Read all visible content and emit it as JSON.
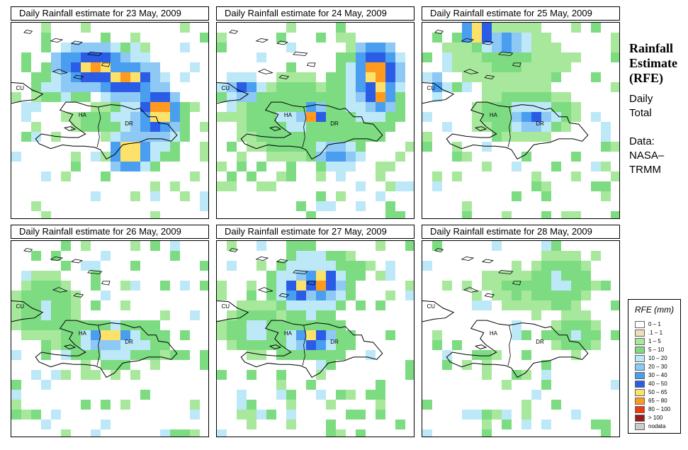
{
  "panels": [
    {
      "title": "Daily Rainfall estimate for  23 May, 2009",
      "labels": {
        "cu": "CU",
        "ha": "HA",
        "dr": "DR"
      },
      "clusters": [
        {
          "lon": -72.0,
          "lat": 21.4,
          "rx": 1.7,
          "ry": 0.9,
          "peak": 8
        },
        {
          "lon": -70.6,
          "lat": 20.9,
          "rx": 1.6,
          "ry": 0.8,
          "peak": 8
        },
        {
          "lon": -69.1,
          "lat": 19.6,
          "rx": 0.9,
          "ry": 1.0,
          "peak": 9
        },
        {
          "lon": -70.4,
          "lat": 17.9,
          "rx": 0.9,
          "ry": 0.7,
          "peak": 9
        },
        {
          "lon": -69.6,
          "lat": 19.1,
          "rx": 1.5,
          "ry": 1.6,
          "peak": 5
        },
        {
          "lon": -73.2,
          "lat": 20.6,
          "rx": 1.3,
          "ry": 0.7,
          "peak": 4
        },
        {
          "lon": -71.0,
          "lat": 19.2,
          "rx": 1.7,
          "ry": 0.6,
          "peak": 3
        }
      ]
    },
    {
      "title": "Daily Rainfall estimate for  24 May, 2009",
      "labels": {
        "cu": "CU",
        "ha": "HA",
        "dr": "DR"
      },
      "clusters": [
        {
          "lon": -68.6,
          "lat": 21.2,
          "rx": 1.0,
          "ry": 1.2,
          "peak": 9
        },
        {
          "lon": -68.5,
          "lat": 20.3,
          "rx": 0.7,
          "ry": 0.7,
          "peak": 9
        },
        {
          "lon": -71.3,
          "lat": 19.4,
          "rx": 0.6,
          "ry": 0.4,
          "peak": 9
        },
        {
          "lon": -74.4,
          "lat": 20.5,
          "rx": 0.9,
          "ry": 0.6,
          "peak": 6
        },
        {
          "lon": -70.3,
          "lat": 17.8,
          "rx": 1.0,
          "ry": 0.6,
          "peak": 6
        },
        {
          "lon": -72.0,
          "lat": 19.3,
          "rx": 2.5,
          "ry": 1.5,
          "peak": 3
        },
        {
          "lon": -69.0,
          "lat": 20.3,
          "rx": 1.6,
          "ry": 1.8,
          "peak": 4
        }
      ]
    },
    {
      "title": "Daily Rainfall estimate for  25 May, 2009",
      "labels": {
        "cu": "CU",
        "ha": "HA",
        "dr": "DR"
      },
      "clusters": [
        {
          "lon": -73.1,
          "lat": 22.8,
          "rx": 0.7,
          "ry": 0.5,
          "peak": 9
        },
        {
          "lon": -72.0,
          "lat": 22.4,
          "rx": 1.1,
          "ry": 0.5,
          "peak": 6
        },
        {
          "lon": -74.8,
          "lat": 20.6,
          "rx": 0.4,
          "ry": 0.5,
          "peak": 6
        },
        {
          "lon": -70.7,
          "lat": 19.3,
          "rx": 1.0,
          "ry": 0.6,
          "peak": 6
        },
        {
          "lon": -71.0,
          "lat": 19.5,
          "rx": 2.0,
          "ry": 1.0,
          "peak": 3
        },
        {
          "lon": -71.8,
          "lat": 21.8,
          "rx": 2.2,
          "ry": 1.2,
          "peak": 2
        }
      ]
    },
    {
      "title": "Daily Rainfall estimate for  26 May, 2009",
      "labels": {
        "cu": "CU",
        "ha": "HA",
        "dr": "DR"
      },
      "clusters": [
        {
          "lon": -71.2,
          "lat": 19.3,
          "rx": 0.9,
          "ry": 0.4,
          "peak": 8
        },
        {
          "lon": -72.0,
          "lat": 19.2,
          "rx": 0.4,
          "ry": 0.5,
          "peak": 6
        },
        {
          "lon": -71.0,
          "lat": 19.1,
          "rx": 2.0,
          "ry": 0.9,
          "peak": 4
        },
        {
          "lon": -74.0,
          "lat": 20.5,
          "rx": 1.4,
          "ry": 1.2,
          "peak": 3
        }
      ]
    },
    {
      "title": "Daily Rainfall estimate for  27 May, 2009",
      "labels": {
        "cu": "CU",
        "ha": "HA",
        "dr": "DR"
      },
      "clusters": [
        {
          "lon": -71.0,
          "lat": 21.5,
          "rx": 0.8,
          "ry": 0.6,
          "peak": 9
        },
        {
          "lon": -72.0,
          "lat": 21.2,
          "rx": 0.6,
          "ry": 0.4,
          "peak": 9
        },
        {
          "lon": -71.4,
          "lat": 21.4,
          "rx": 1.7,
          "ry": 1.4,
          "peak": 5
        },
        {
          "lon": -71.3,
          "lat": 19.2,
          "rx": 0.8,
          "ry": 0.4,
          "peak": 9
        },
        {
          "lon": -71.5,
          "lat": 19.1,
          "rx": 1.8,
          "ry": 0.8,
          "peak": 4
        },
        {
          "lon": -73.8,
          "lat": 19.6,
          "rx": 1.4,
          "ry": 1.0,
          "peak": 3
        }
      ]
    },
    {
      "title": "Daily Rainfall estimate for  28 May, 2009",
      "labels": {
        "cu": "CU",
        "ha": "HA",
        "dr": "DR"
      },
      "clusters": [
        {
          "lon": -69.6,
          "lat": 21.5,
          "rx": 1.4,
          "ry": 1.1,
          "peak": 3
        },
        {
          "lon": -68.9,
          "lat": 19.4,
          "rx": 1.0,
          "ry": 0.8,
          "peak": 3
        },
        {
          "lon": -71.4,
          "lat": 21.3,
          "rx": 1.2,
          "ry": 0.8,
          "peak": 2
        }
      ]
    }
  ],
  "sidebar": {
    "title_lines": [
      "Rainfall",
      "Estimate",
      "(RFE)"
    ],
    "period_lines": [
      "Daily",
      "Total"
    ],
    "source_lines": [
      "Data:",
      "NASA–",
      "TRMM"
    ]
  },
  "legend": {
    "title": "RFE (mm)",
    "classes": [
      {
        "label": "0 – 1",
        "color": "#ffffff"
      },
      {
        "label": ".1 – 1",
        "color": "#f0dcc0"
      },
      {
        "label": "1 – 5",
        "color": "#a8e89c"
      },
      {
        "label": "5 – 10",
        "color": "#7ddc82"
      },
      {
        "label": "10 – 20",
        "color": "#bde8f8"
      },
      {
        "label": "20 – 30",
        "color": "#8ec8f4"
      },
      {
        "label": "30 – 40",
        "color": "#4a9ef0"
      },
      {
        "label": "40 – 50",
        "color": "#2a5ce6"
      },
      {
        "label": "50 – 65",
        "color": "#fce26a"
      },
      {
        "label": "65 – 80",
        "color": "#ff9a1e"
      },
      {
        "label": "80 – 100",
        "color": "#ee3a10"
      },
      {
        "label": "> 100",
        "color": "#9a1a1a"
      },
      {
        "label": "nodata",
        "color": "#cccccc"
      }
    ]
  },
  "map_region": {
    "lon_min": -75.5,
    "lon_max": -67.0,
    "lat_min": 15.2,
    "lat_max": 23.2
  }
}
